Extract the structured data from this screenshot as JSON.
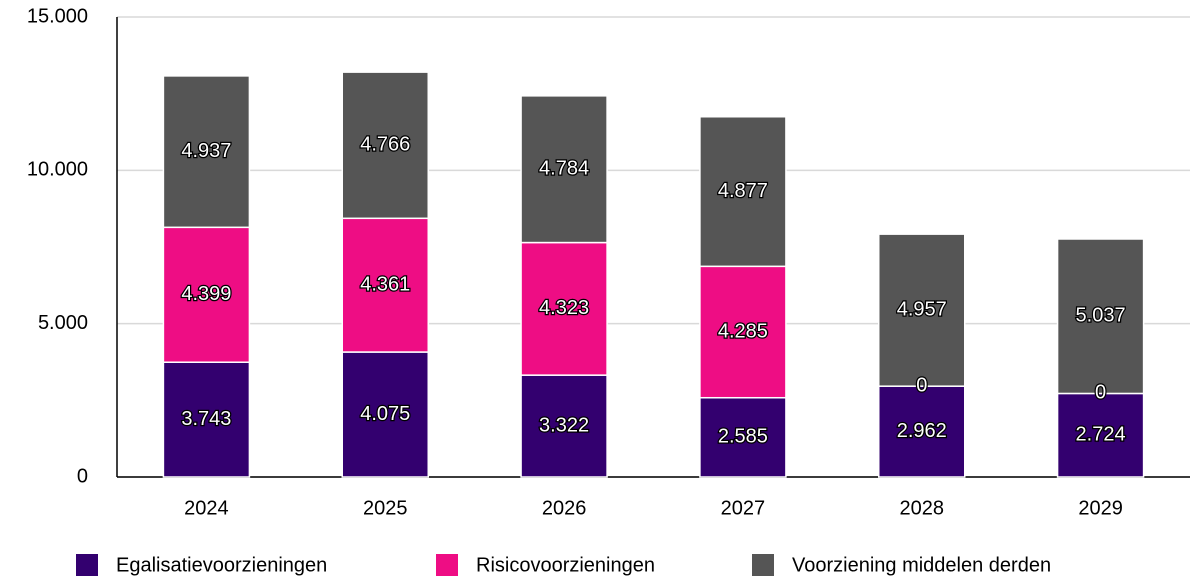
{
  "chart_data": {
    "type": "bar",
    "stacked": true,
    "categories": [
      "2024",
      "2025",
      "2026",
      "2027",
      "2028",
      "2029"
    ],
    "series": [
      {
        "name": "Egalisatievoorzieningen",
        "color": "#33006f",
        "values": [
          3743,
          4075,
          3322,
          2585,
          2962,
          2724
        ],
        "value_labels": [
          "3.743",
          "4.075",
          "3.322",
          "2.585",
          "2.962",
          "2.724"
        ]
      },
      {
        "name": "Risicovoorzieningen",
        "color": "#ee0d84",
        "values": [
          4399,
          4361,
          4323,
          4285,
          0,
          0
        ],
        "value_labels": [
          "4.399",
          "4.361",
          "4.323",
          "4.285",
          "0",
          "0"
        ]
      },
      {
        "name": "Voorziening middelen derden",
        "color": "#555555",
        "values": [
          4937,
          4766,
          4784,
          4877,
          4957,
          5037
        ],
        "value_labels": [
          "4.937",
          "4.766",
          "4.784",
          "4.877",
          "4.957",
          "5.037"
        ]
      }
    ],
    "ylim": [
      0,
      15000
    ],
    "yticks": [
      0,
      {
        "value": 5000,
        "label": "5.000"
      },
      {
        "value": 10000,
        "label": "10.000"
      },
      {
        "value": 15000,
        "label": "15.000"
      }
    ],
    "grid": true,
    "legend": "bottom"
  }
}
